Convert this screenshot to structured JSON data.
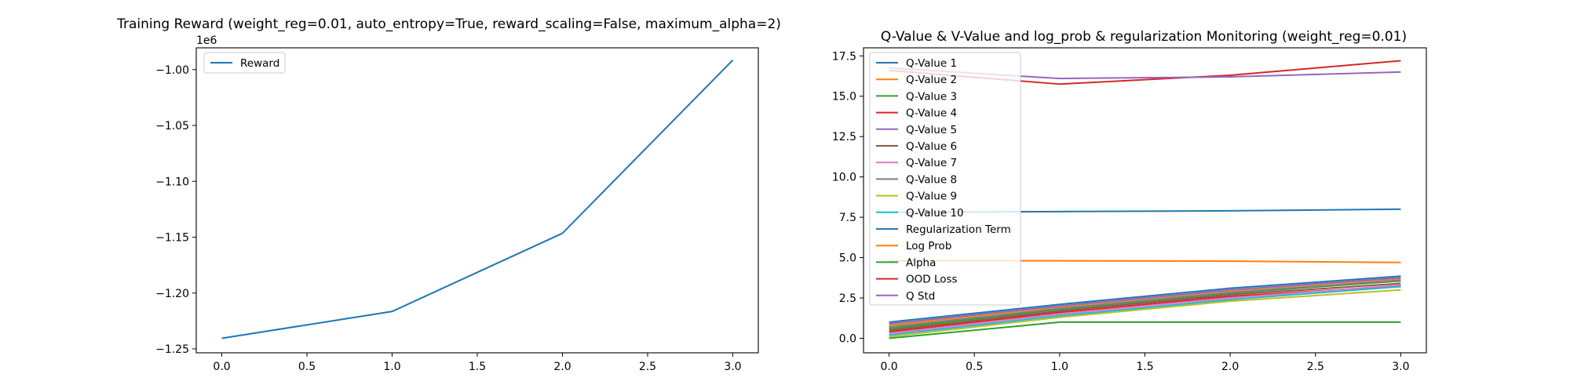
{
  "chart_data": [
    {
      "type": "line",
      "title": "Training Reward (weight_reg=0.01, auto_entropy=True, reward_scaling=False, maximum_alpha=2)",
      "xlabel": "",
      "ylabel": "",
      "offset_text": "1e6",
      "xlim": [
        -0.15,
        3.15
      ],
      "ylim": [
        -1.2535,
        -0.9805
      ],
      "xticks": [
        0.0,
        0.5,
        1.0,
        1.5,
        2.0,
        2.5,
        3.0
      ],
      "xtick_labels": [
        "0.0",
        "0.5",
        "1.0",
        "1.5",
        "2.0",
        "2.5",
        "3.0"
      ],
      "yticks": [
        -1.25,
        -1.2,
        -1.15,
        -1.1,
        -1.05,
        -1.0
      ],
      "ytick_labels": [
        "−1.25",
        "−1.20",
        "−1.15",
        "−1.10",
        "−1.05",
        "−1.00"
      ],
      "legend_position": "upper-left",
      "grid": false,
      "series": [
        {
          "name": "Reward",
          "color": "#1f77b4",
          "x": [
            0,
            1,
            2,
            3
          ],
          "y": [
            -1.2405,
            -1.2165,
            -1.1465,
            -0.9915
          ]
        }
      ]
    },
    {
      "type": "line",
      "title": "Q-Value & V-Value and log_prob & regularization Monitoring (weight_reg=0.01)",
      "xlabel": "",
      "ylabel": "",
      "xlim": [
        -0.15,
        3.15
      ],
      "ylim": [
        -0.9,
        18.0
      ],
      "xticks": [
        0.0,
        0.5,
        1.0,
        1.5,
        2.0,
        2.5,
        3.0
      ],
      "xtick_labels": [
        "0.0",
        "0.5",
        "1.0",
        "1.5",
        "2.0",
        "2.5",
        "3.0"
      ],
      "yticks": [
        0.0,
        2.5,
        5.0,
        7.5,
        10.0,
        12.5,
        15.0,
        17.5
      ],
      "ytick_labels": [
        "0.0",
        "2.5",
        "5.0",
        "7.5",
        "10.0",
        "12.5",
        "15.0",
        "17.5"
      ],
      "legend_position": "upper-left",
      "grid": false,
      "series": [
        {
          "name": "Q-Value 1",
          "color": "#1f77b4",
          "x": [
            0,
            1,
            2,
            3
          ],
          "y": [
            1.0,
            2.1,
            3.1,
            3.85
          ]
        },
        {
          "name": "Q-Value 2",
          "color": "#ff7f0e",
          "x": [
            0,
            1,
            2,
            3
          ],
          "y": [
            0.8,
            1.95,
            2.95,
            3.7
          ]
        },
        {
          "name": "Q-Value 3",
          "color": "#2ca02c",
          "x": [
            0,
            1,
            2,
            3
          ],
          "y": [
            0.6,
            1.8,
            2.8,
            3.55
          ]
        },
        {
          "name": "Q-Value 4",
          "color": "#d62728",
          "x": [
            0,
            1,
            2,
            3
          ],
          "y": [
            0.4,
            1.6,
            2.6,
            3.25
          ]
        },
        {
          "name": "Q-Value 5",
          "color": "#9467bd",
          "x": [
            0,
            1,
            2,
            3
          ],
          "y": [
            0.9,
            2.0,
            3.0,
            3.75
          ]
        },
        {
          "name": "Q-Value 6",
          "color": "#8c564b",
          "x": [
            0,
            1,
            2,
            3
          ],
          "y": [
            0.5,
            1.7,
            2.7,
            3.4
          ]
        },
        {
          "name": "Q-Value 7",
          "color": "#e377c2",
          "x": [
            0,
            1,
            2,
            3
          ],
          "y": [
            0.3,
            1.5,
            2.5,
            3.3
          ]
        },
        {
          "name": "Q-Value 8",
          "color": "#7f7f7f",
          "x": [
            0,
            1,
            2,
            3
          ],
          "y": [
            0.7,
            1.85,
            2.85,
            3.6
          ]
        },
        {
          "name": "Q-Value 9",
          "color": "#bcbd22",
          "x": [
            0,
            1,
            2,
            3
          ],
          "y": [
            0.1,
            1.3,
            2.3,
            3.0
          ]
        },
        {
          "name": "Q-Value 10",
          "color": "#17becf",
          "x": [
            0,
            1,
            2,
            3
          ],
          "y": [
            0.2,
            1.4,
            2.4,
            3.2
          ]
        },
        {
          "name": "Regularization Term",
          "color": "#1f77b4",
          "x": [
            0,
            1,
            2,
            3
          ],
          "y": [
            7.8,
            7.85,
            7.9,
            8.0
          ]
        },
        {
          "name": "Log Prob",
          "color": "#ff7f0e",
          "x": [
            0,
            1,
            2,
            3
          ],
          "y": [
            4.8,
            4.8,
            4.78,
            4.7
          ]
        },
        {
          "name": "Alpha",
          "color": "#2ca02c",
          "x": [
            0,
            1,
            2,
            3
          ],
          "y": [
            0.0,
            1.0,
            1.0,
            1.0
          ]
        },
        {
          "name": "OOD Loss",
          "color": "#d62728",
          "x": [
            0,
            1,
            2,
            3
          ],
          "y": [
            16.6,
            15.75,
            16.3,
            17.2
          ]
        },
        {
          "name": "Q Std",
          "color": "#9467bd",
          "x": [
            0,
            1,
            2,
            3
          ],
          "y": [
            16.75,
            16.1,
            16.2,
            16.5
          ]
        }
      ]
    }
  ]
}
